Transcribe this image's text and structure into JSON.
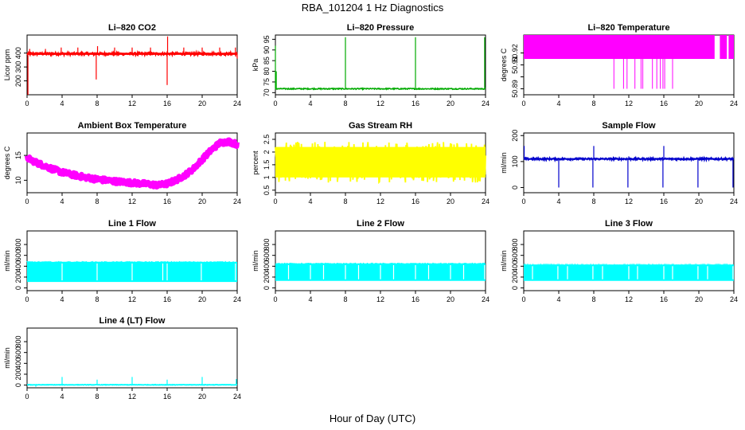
{
  "figure": {
    "title": "RBA_101204  1 Hz Diagnostics",
    "xlabel": "Hour of Day (UTC)"
  },
  "chart_data": [
    {
      "type": "line",
      "title": "Li–820 CO2",
      "ylabel": "Licor ppm",
      "color": "#ff0000",
      "xlim": [
        0,
        24
      ],
      "xticks": [
        0,
        4,
        8,
        12,
        16,
        20,
        24
      ],
      "ylim": [
        100,
        530
      ],
      "yticks": [
        200,
        300,
        400
      ],
      "baseline": 395,
      "noise": 10,
      "spikes": [
        [
          0.1,
          100
        ],
        [
          0.3,
          430
        ],
        [
          2.1,
          430
        ],
        [
          3.9,
          440
        ],
        [
          5.8,
          440
        ],
        [
          7.9,
          210
        ],
        [
          8.05,
          450
        ],
        [
          10.0,
          440
        ],
        [
          12.0,
          440
        ],
        [
          14.1,
          440
        ],
        [
          16.0,
          170
        ],
        [
          16.05,
          520
        ],
        [
          17.9,
          440
        ],
        [
          20.0,
          440
        ],
        [
          22.0,
          440
        ],
        [
          23.8,
          440
        ],
        [
          24.0,
          360
        ]
      ]
    },
    {
      "type": "line",
      "title": "Li–820 Pressure",
      "ylabel": "kPa",
      "color": "#00aa00",
      "xlim": [
        0,
        24
      ],
      "xticks": [
        0,
        4,
        8,
        12,
        16,
        20,
        24
      ],
      "ylim": [
        69,
        97
      ],
      "yticks": [
        70,
        75,
        80,
        85,
        90,
        95
      ],
      "baseline": 71.8,
      "noise": 0.25,
      "spikes": [
        [
          0.0,
          92
        ],
        [
          0.1,
          80
        ],
        [
          8.0,
          96
        ],
        [
          16.0,
          96
        ],
        [
          23.9,
          96
        ]
      ]
    },
    {
      "type": "band",
      "title": "Li–820 Temperature",
      "ylabel": "degrees C",
      "color": "#ff00ff",
      "xlim": [
        0,
        24
      ],
      "xticks": [
        0,
        4,
        8,
        12,
        16,
        20,
        24
      ],
      "ylim": [
        50.885,
        50.935
      ],
      "yticks": [
        50.89,
        50.9,
        50.91,
        50.92
      ],
      "yticklabels": [
        "50.89",
        "",
        "50.91",
        "50.92"
      ],
      "bands": [
        [
          0,
          21.8,
          50.915,
          50.935
        ],
        [
          22.4,
          23.2,
          50.915,
          50.935
        ],
        [
          23.4,
          24,
          50.915,
          50.935
        ]
      ],
      "drops": [
        10.3,
        11.4,
        11.8,
        12.7,
        13.4,
        13.6,
        14.7,
        15.2,
        15.6,
        15.9,
        16.1,
        17.0
      ],
      "drop_bottom": 50.89
    },
    {
      "type": "line",
      "title": "Ambient Box Temperature",
      "ylabel": "degrees C",
      "color": "#ff00ff",
      "xlim": [
        0,
        24
      ],
      "xticks": [
        0,
        4,
        8,
        12,
        16,
        20,
        24
      ],
      "ylim": [
        7.5,
        19.5
      ],
      "yticks": [
        10,
        15
      ],
      "curve": [
        [
          0,
          14.5
        ],
        [
          1,
          13.6
        ],
        [
          2,
          12.9
        ],
        [
          3,
          12.2
        ],
        [
          4,
          11.6
        ],
        [
          6,
          10.8
        ],
        [
          8,
          10.2
        ],
        [
          10,
          9.8
        ],
        [
          12,
          9.5
        ],
        [
          14,
          9.2
        ],
        [
          15,
          9.0
        ],
        [
          16,
          9.3
        ],
        [
          17,
          10.0
        ],
        [
          18,
          11.0
        ],
        [
          19,
          12.3
        ],
        [
          20,
          14.2
        ],
        [
          21,
          16.0
        ],
        [
          22,
          17.5
        ],
        [
          23,
          17.8
        ],
        [
          24,
          17.2
        ]
      ],
      "noise": 0.5
    },
    {
      "type": "line",
      "title": "Gas Stream RH",
      "ylabel": "percent",
      "color": "#ffff00",
      "xlim": [
        0,
        24
      ],
      "xticks": [
        0,
        4,
        8,
        12,
        16,
        20,
        24
      ],
      "ylim": [
        0.4,
        2.75
      ],
      "yticks": [
        0.5,
        1.0,
        1.5,
        2.0,
        2.5
      ],
      "baseline": 1.6,
      "noise": 0.8
    },
    {
      "type": "line",
      "title": "Sample Flow",
      "ylabel": "ml/min",
      "color": "#0000cc",
      "xlim": [
        0,
        24
      ],
      "xticks": [
        0,
        4,
        8,
        12,
        16,
        20,
        24
      ],
      "ylim": [
        -20,
        210
      ],
      "yticks": [
        0,
        100,
        200
      ],
      "baseline": 110,
      "noise": 4,
      "spikes": [
        [
          0.05,
          160
        ],
        [
          4.0,
          0
        ],
        [
          7.9,
          0
        ],
        [
          8.0,
          160
        ],
        [
          11.9,
          0
        ],
        [
          12.0,
          120
        ],
        [
          15.9,
          0
        ],
        [
          16.0,
          160
        ],
        [
          19.9,
          0
        ],
        [
          20.0,
          110
        ],
        [
          23.9,
          0
        ]
      ]
    },
    {
      "type": "line",
      "title": "Line 1 Flow",
      "ylabel": "ml/min",
      "color": "#00ffff",
      "xlim": [
        0,
        24
      ],
      "xticks": [
        0,
        4,
        8,
        12,
        16,
        20,
        24
      ],
      "ylim": [
        -50,
        1050
      ],
      "yticks": [
        0,
        200,
        400,
        600,
        800
      ],
      "fill": [
        110,
        480
      ],
      "gaps": [
        4.0,
        8.0,
        12.0,
        15.5,
        16.0,
        19.9,
        23.8
      ]
    },
    {
      "type": "line",
      "title": "Line 2 Flow",
      "ylabel": "ml/min",
      "color": "#00ffff",
      "xlim": [
        0,
        24
      ],
      "xticks": [
        0,
        4,
        8,
        12,
        16,
        20,
        24
      ],
      "ylim": [
        -50,
        1050
      ],
      "yticks": [
        0,
        200,
        400,
        600,
        800
      ],
      "fill": [
        130,
        450
      ],
      "gaps": [
        1.5,
        4.0,
        5.5,
        8.0,
        9.5,
        12.0,
        13.5,
        16.0,
        17.5,
        20.0,
        21.5,
        23.9
      ]
    },
    {
      "type": "line",
      "title": "Line 3 Flow",
      "ylabel": "ml/min",
      "color": "#00ffff",
      "xlim": [
        0,
        24
      ],
      "xticks": [
        0,
        4,
        8,
        12,
        16,
        20,
        24
      ],
      "ylim": [
        -50,
        1050
      ],
      "yticks": [
        0,
        200,
        400,
        600,
        800
      ],
      "fill": [
        130,
        430
      ],
      "gaps": [
        1.0,
        3.9,
        5.0,
        7.9,
        9.0,
        12.0,
        13.0,
        16.0,
        17.0,
        19.9,
        21.0,
        23.9
      ]
    },
    {
      "type": "line",
      "title": "Line 4 (LT) Flow",
      "ylabel": "ml/min",
      "color": "#00ffff",
      "xlim": [
        0,
        24
      ],
      "xticks": [
        0,
        4,
        8,
        12,
        16,
        20,
        24
      ],
      "ylim": [
        -50,
        1050
      ],
      "yticks": [
        0,
        200,
        400,
        600,
        800
      ],
      "baseline": 5,
      "noise": 4,
      "spikes": [
        [
          1.0,
          -30
        ],
        [
          4.0,
          150
        ],
        [
          8.0,
          100
        ],
        [
          12.0,
          150
        ],
        [
          16.0,
          100
        ],
        [
          20.0,
          150
        ],
        [
          23.9,
          110
        ]
      ]
    }
  ]
}
